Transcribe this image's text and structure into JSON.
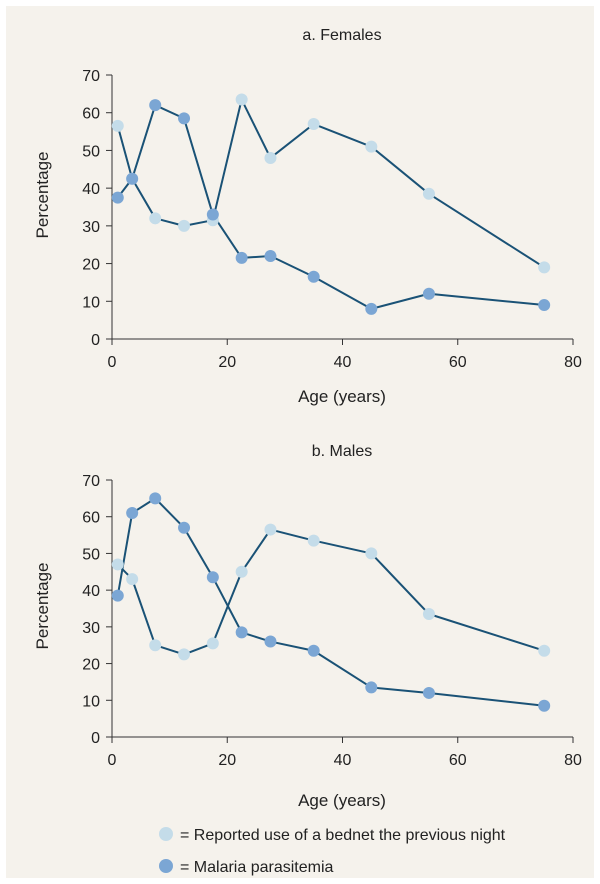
{
  "colors": {
    "background": "#f5f2ec",
    "line": "#1a5276",
    "bednet_marker": "#c4dce9",
    "malaria_marker": "#7ba6d4",
    "axis": "#333333"
  },
  "chart_data": [
    {
      "type": "line",
      "title": "a. Females",
      "xlabel": "Age (years)",
      "ylabel": "Percentage",
      "xlim": [
        0,
        80
      ],
      "ylim": [
        0,
        70
      ],
      "xticks": [
        0,
        20,
        40,
        60,
        80
      ],
      "yticks": [
        0,
        10,
        20,
        30,
        40,
        50,
        60,
        70
      ],
      "grid": false,
      "series": [
        {
          "name": "Reported use of a bednet the previous night",
          "x": [
            1,
            3.5,
            7.5,
            12.5,
            17.5,
            22.5,
            27.5,
            35,
            45,
            55,
            75
          ],
          "y": [
            56.5,
            42.5,
            32,
            30,
            31.5,
            63.5,
            48,
            57,
            51,
            38.5,
            19
          ]
        },
        {
          "name": "Malaria parasitemia",
          "x": [
            1,
            3.5,
            7.5,
            12.5,
            17.5,
            22.5,
            27.5,
            35,
            45,
            55,
            75
          ],
          "y": [
            37.5,
            42.5,
            62,
            58.5,
            33,
            21.5,
            22,
            16.5,
            8,
            12,
            9
          ]
        }
      ]
    },
    {
      "type": "line",
      "title": "b. Males",
      "xlabel": "Age (years)",
      "ylabel": "Percentage",
      "xlim": [
        0,
        80
      ],
      "ylim": [
        0,
        70
      ],
      "xticks": [
        0,
        20,
        40,
        60,
        80
      ],
      "yticks": [
        0,
        10,
        20,
        30,
        40,
        50,
        60,
        70
      ],
      "grid": false,
      "series": [
        {
          "name": "Reported use of a bednet the previous night",
          "x": [
            1,
            3.5,
            7.5,
            12.5,
            17.5,
            22.5,
            27.5,
            35,
            45,
            55,
            75
          ],
          "y": [
            47,
            43,
            25,
            22.5,
            25.5,
            45,
            56.5,
            53.5,
            50,
            33.5,
            23.5
          ]
        },
        {
          "name": "Malaria parasitemia",
          "x": [
            1,
            3.5,
            7.5,
            12.5,
            17.5,
            22.5,
            27.5,
            35,
            45,
            55,
            75
          ],
          "y": [
            38.5,
            61,
            65,
            57,
            43.5,
            28.5,
            26,
            23.5,
            13.5,
            12,
            8.5
          ]
        }
      ]
    }
  ],
  "legend": {
    "placement": "bottom",
    "items": [
      {
        "label": "= Reported use of a bednet the previous night",
        "marker": "bednet"
      },
      {
        "label": "= Malaria parasitemia",
        "marker": "malaria"
      }
    ]
  }
}
